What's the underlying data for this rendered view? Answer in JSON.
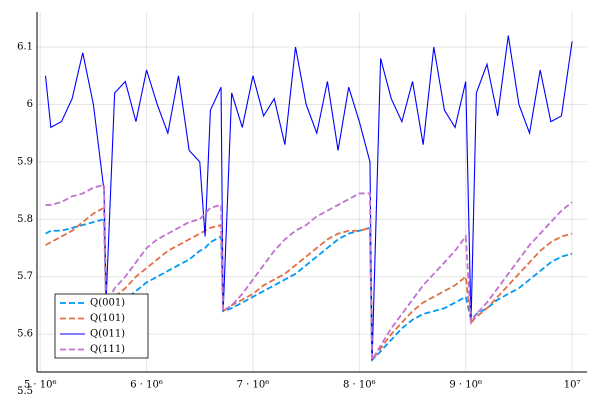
{
  "chart_data": {
    "type": "line",
    "x": [
      5050000,
      5100000,
      5200000,
      5300000,
      5400000,
      5500000,
      5600000,
      5620000,
      5700000,
      5800000,
      5900000,
      6000000,
      6100000,
      6200000,
      6300000,
      6400000,
      6500000,
      6550000,
      6600000,
      6700000,
      6720000,
      6800000,
      6900000,
      7000000,
      7100000,
      7200000,
      7300000,
      7400000,
      7500000,
      7600000,
      7700000,
      7800000,
      7900000,
      8000000,
      8100000,
      8120000,
      8200000,
      8300000,
      8400000,
      8500000,
      8600000,
      8700000,
      8800000,
      8900000,
      9000000,
      9050000,
      9100000,
      9200000,
      9300000,
      9400000,
      9500000,
      9600000,
      9700000,
      9800000,
      9900000,
      10000000
    ],
    "series": [
      {
        "name": "Q(001)",
        "color": "#009af9",
        "line_style": "dashed",
        "values": [
          5.775,
          5.78,
          5.78,
          5.785,
          5.79,
          5.795,
          5.8,
          5.64,
          5.65,
          5.66,
          5.675,
          5.69,
          5.7,
          5.71,
          5.72,
          5.73,
          5.745,
          5.75,
          5.76,
          5.77,
          5.64,
          5.645,
          5.655,
          5.665,
          5.675,
          5.685,
          5.695,
          5.705,
          5.72,
          5.735,
          5.75,
          5.765,
          5.775,
          5.78,
          5.785,
          5.555,
          5.57,
          5.59,
          5.61,
          5.625,
          5.635,
          5.64,
          5.645,
          5.655,
          5.665,
          5.625,
          5.635,
          5.645,
          5.66,
          5.67,
          5.68,
          5.695,
          5.71,
          5.725,
          5.735,
          5.74
        ]
      },
      {
        "name": "Q(101)",
        "color": "#e26f46",
        "line_style": "dashed",
        "values": [
          5.755,
          5.76,
          5.77,
          5.78,
          5.795,
          5.81,
          5.82,
          5.65,
          5.665,
          5.68,
          5.7,
          5.715,
          5.73,
          5.745,
          5.755,
          5.765,
          5.775,
          5.78,
          5.785,
          5.79,
          5.64,
          5.65,
          5.66,
          5.67,
          5.685,
          5.695,
          5.705,
          5.72,
          5.735,
          5.75,
          5.765,
          5.775,
          5.78,
          5.78,
          5.785,
          5.555,
          5.575,
          5.6,
          5.62,
          5.64,
          5.655,
          5.665,
          5.675,
          5.685,
          5.7,
          5.62,
          5.63,
          5.645,
          5.665,
          5.685,
          5.705,
          5.725,
          5.745,
          5.76,
          5.77,
          5.775
        ]
      },
      {
        "name": "Q(011)",
        "color": "#0000ff",
        "line_style": "solid",
        "values": [
          6.05,
          5.96,
          5.97,
          6.01,
          6.09,
          6.0,
          5.85,
          5.66,
          6.02,
          6.04,
          5.97,
          6.06,
          6.0,
          5.95,
          6.05,
          5.92,
          5.9,
          5.77,
          5.99,
          6.03,
          5.64,
          6.02,
          5.96,
          6.05,
          5.98,
          6.01,
          5.93,
          6.1,
          6.0,
          5.95,
          6.04,
          5.92,
          6.03,
          5.97,
          5.9,
          5.555,
          6.08,
          6.01,
          5.97,
          6.04,
          5.93,
          6.1,
          5.99,
          5.96,
          6.04,
          5.62,
          6.02,
          6.07,
          5.98,
          6.12,
          6.0,
          5.95,
          6.06,
          5.97,
          5.98,
          6.11
        ]
      },
      {
        "name": "Q(111)",
        "color": "#c271d2",
        "line_style": "dashed",
        "values": [
          5.825,
          5.825,
          5.83,
          5.84,
          5.845,
          5.855,
          5.86,
          5.65,
          5.68,
          5.7,
          5.725,
          5.75,
          5.765,
          5.775,
          5.785,
          5.795,
          5.8,
          5.81,
          5.82,
          5.825,
          5.64,
          5.65,
          5.67,
          5.695,
          5.72,
          5.745,
          5.765,
          5.78,
          5.79,
          5.805,
          5.815,
          5.825,
          5.835,
          5.845,
          5.845,
          5.555,
          5.58,
          5.61,
          5.635,
          5.66,
          5.685,
          5.705,
          5.725,
          5.745,
          5.77,
          5.62,
          5.635,
          5.655,
          5.68,
          5.705,
          5.73,
          5.755,
          5.775,
          5.795,
          5.815,
          5.83
        ]
      }
    ],
    "xlim": [
      4970000,
      10140000
    ],
    "xticks": [
      {
        "value": 5000000,
        "label": "5 · 10⁶"
      },
      {
        "value": 6000000,
        "label": "6 · 10⁶"
      },
      {
        "value": 7000000,
        "label": "7 · 10⁶"
      },
      {
        "value": 8000000,
        "label": "8 · 10⁶"
      },
      {
        "value": 9000000,
        "label": "9 · 10⁶"
      },
      {
        "value": 10000000,
        "label": "10⁷"
      }
    ],
    "ylim": [
      5.534,
      6.161
    ],
    "yticks": [
      5.5,
      5.6,
      5.7,
      5.8,
      5.9,
      6.0,
      6.1
    ],
    "grid": true,
    "legend": "bottom left"
  }
}
